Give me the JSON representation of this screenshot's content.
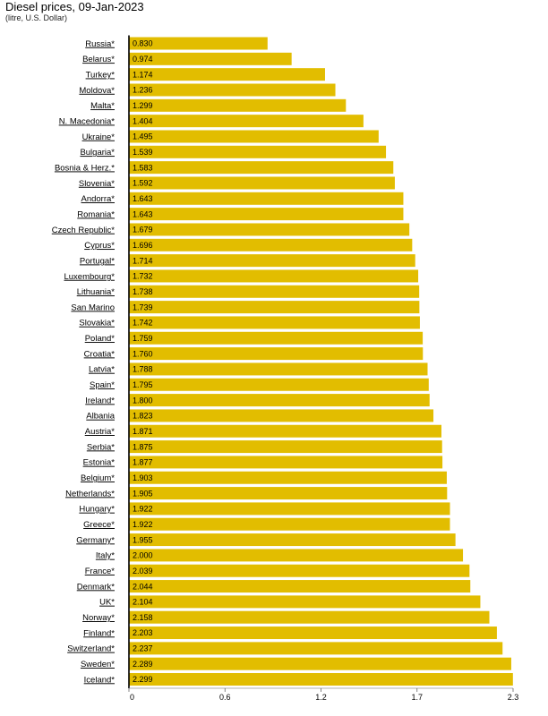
{
  "chart_data": {
    "type": "bar",
    "orientation": "horizontal",
    "title": "Diesel prices, 09-Jan-2023",
    "subtitle": "(litre, U.S. Dollar)",
    "color": "#E2BD00",
    "xlim": [
      0,
      2.3
    ],
    "xticks": [
      "0",
      "0.6",
      "1.2",
      "1.7",
      "2.3"
    ],
    "xtick_values": [
      0,
      0.575,
      1.15,
      1.725,
      2.3
    ],
    "categories": [
      "Russia*",
      "Belarus*",
      "Turkey*",
      "Moldova*",
      "Malta*",
      "N. Macedonia*",
      "Ukraine*",
      "Bulgaria*",
      "Bosnia & Herz.*",
      "Slovenia*",
      "Andorra*",
      "Romania*",
      "Czech Republic*",
      "Cyprus*",
      "Portugal*",
      "Luxembourg*",
      "Lithuania*",
      "San Marino",
      "Slovakia*",
      "Poland*",
      "Croatia*",
      "Latvia*",
      "Spain*",
      "Ireland*",
      "Albania",
      "Austria*",
      "Serbia*",
      "Estonia*",
      "Belgium*",
      "Netherlands*",
      "Hungary*",
      "Greece*",
      "Germany*",
      "Italy*",
      "France*",
      "Denmark*",
      "UK*",
      "Norway*",
      "Finland*",
      "Switzerland*",
      "Sweden*",
      "Iceland*"
    ],
    "values": [
      0.83,
      0.974,
      1.174,
      1.236,
      1.299,
      1.404,
      1.495,
      1.539,
      1.583,
      1.592,
      1.643,
      1.643,
      1.679,
      1.696,
      1.714,
      1.732,
      1.738,
      1.739,
      1.742,
      1.759,
      1.76,
      1.788,
      1.795,
      1.8,
      1.823,
      1.871,
      1.875,
      1.877,
      1.903,
      1.905,
      1.922,
      1.922,
      1.955,
      2.0,
      2.039,
      2.044,
      2.104,
      2.158,
      2.203,
      2.237,
      2.289,
      2.299
    ],
    "value_labels": [
      "0.830",
      "0.974",
      "1.174",
      "1.236",
      "1.299",
      "1.404",
      "1.495",
      "1.539",
      "1.583",
      "1.592",
      "1.643",
      "1.643",
      "1.679",
      "1.696",
      "1.714",
      "1.732",
      "1.738",
      "1.739",
      "1.742",
      "1.759",
      "1.760",
      "1.788",
      "1.795",
      "1.800",
      "1.823",
      "1.871",
      "1.875",
      "1.877",
      "1.903",
      "1.905",
      "1.922",
      "1.922",
      "1.955",
      "2.000",
      "2.039",
      "2.044",
      "2.104",
      "2.158",
      "2.203",
      "2.237",
      "2.289",
      "2.299"
    ]
  }
}
